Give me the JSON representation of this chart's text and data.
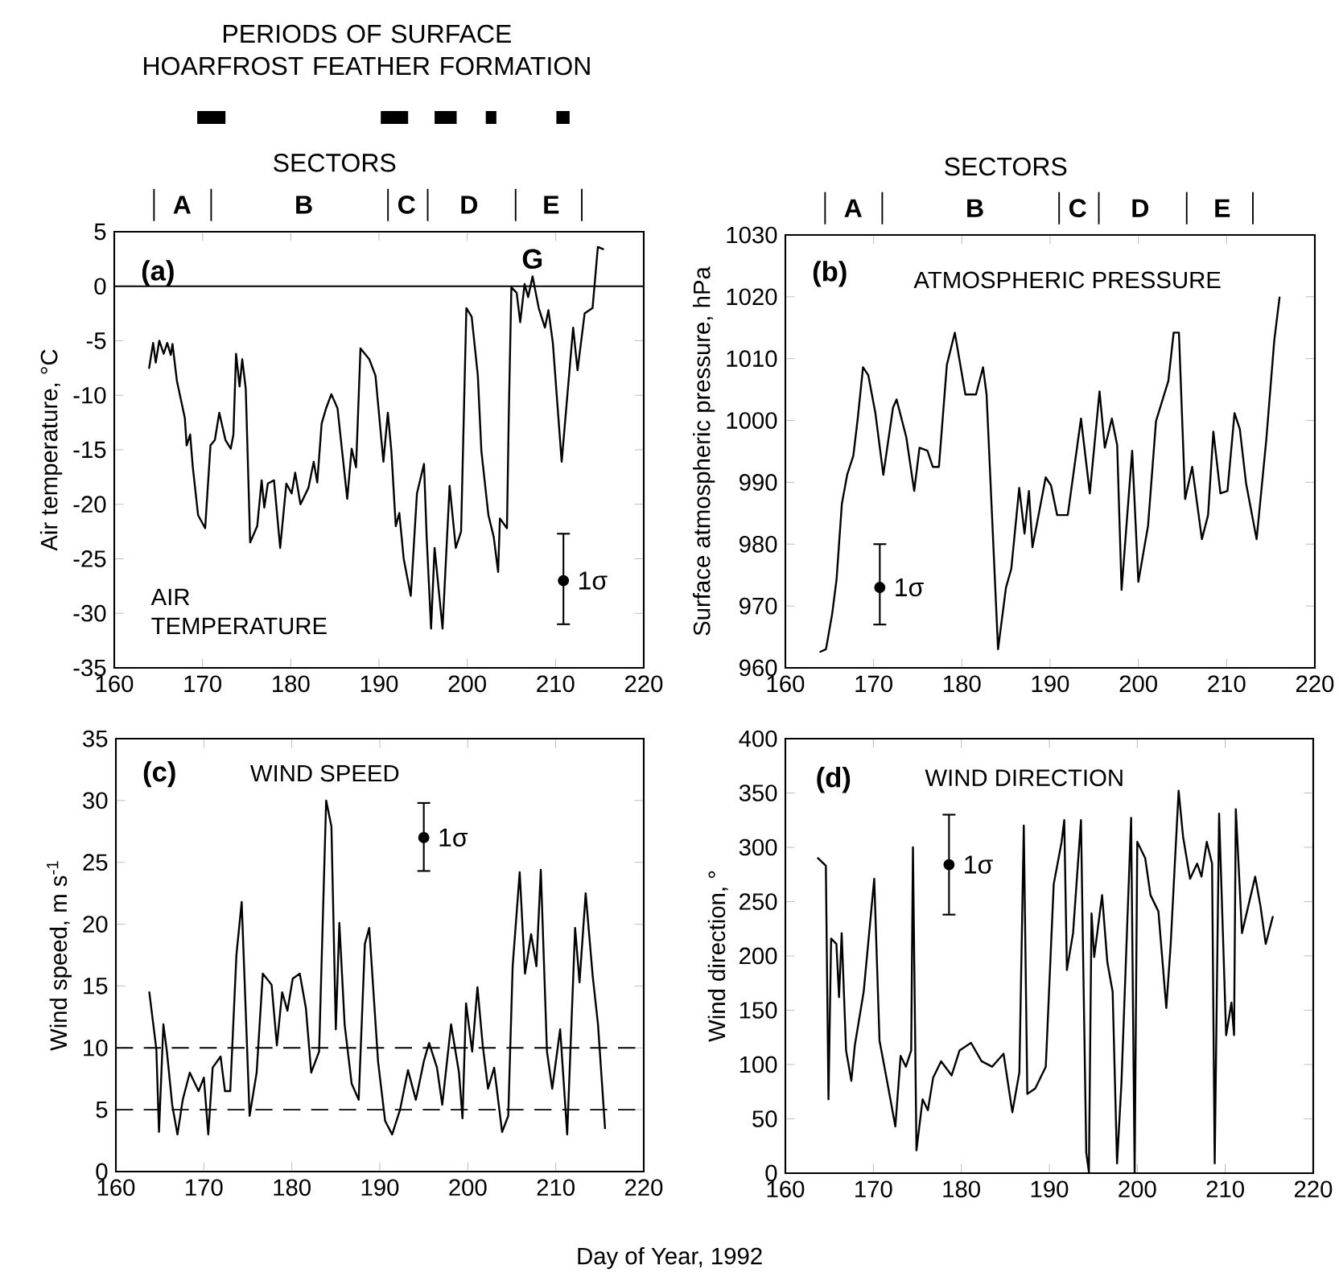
{
  "chart_data": [
    {
      "type": "bar",
      "orientation": "horizontal",
      "title": "PERIODS OF SURFACE HOARFROST FEATHER FORMATION",
      "categories": [
        null
      ],
      "xlim": [
        160,
        220
      ],
      "tick_labels": false,
      "series": [
        {
          "color": "#000000",
          "values": [
            3.2
          ],
          "base": [
            169.4
          ]
        },
        {
          "color": "#000000",
          "values": [
            3.1
          ],
          "base": [
            190.2
          ]
        },
        {
          "color": "#000000",
          "values": [
            2.5
          ],
          "base": [
            196.3
          ]
        },
        {
          "color": "#000000",
          "values": [
            1.2
          ],
          "base": [
            202.1
          ]
        },
        {
          "color": "#000000",
          "values": [
            1.5
          ],
          "base": [
            210.1
          ]
        }
      ]
    },
    {
      "type": "line",
      "ylabel": "Air temperature, °C",
      "xlim": [
        160,
        220
      ],
      "xticks": [
        160,
        170,
        180,
        190,
        200,
        210,
        220
      ],
      "ylim": [
        -35,
        5
      ],
      "yticks": [
        -35,
        -30,
        -25,
        -20,
        -15,
        -10,
        -5,
        0,
        5
      ],
      "annotations": [
        "(a)",
        "AIR TEMPERATURE",
        "SECTORS",
        "A",
        "B",
        "C",
        "D",
        "E",
        {
          "text": "G",
          "x": 207.4,
          "y": 0.9
        }
      ],
      "ref_lines": [
        {
          "axis": "y",
          "value": 0,
          "color": "#000000",
          "line_style": "solid"
        }
      ],
      "series": [
        {
          "type": "line",
          "color": "#000000",
          "x": [
            163.95,
            164.4,
            164.7,
            165.1,
            165.6,
            166.0,
            166.4,
            166.6,
            167.1,
            168.0,
            168.2,
            168.6,
            168.9,
            169.5,
            170.3,
            170.9,
            171.4,
            171.9,
            172.6,
            173.2,
            173.5,
            173.8,
            174.2,
            174.5,
            174.9,
            175.4,
            176.2,
            176.7,
            177.0,
            177.4,
            178.1,
            178.8,
            179.5,
            180.1,
            180.5,
            181.1,
            182.0,
            182.6,
            183.0,
            183.5,
            184.0,
            184.6,
            185.3,
            186.4,
            186.9,
            187.4,
            187.9,
            188.9,
            189.6,
            190.5,
            191.0,
            191.4,
            191.9,
            192.3,
            192.8,
            193.6,
            194.3,
            195.1,
            195.4,
            195.9,
            196.3,
            197.2,
            198.0,
            198.7,
            199.3,
            199.9,
            200.5,
            201.2,
            201.6,
            202.4,
            203.0,
            203.5,
            203.7,
            204.5,
            204.7,
            205.0,
            205.6,
            206.0,
            206.5,
            206.9,
            207.4,
            208.1,
            208.8,
            209.2,
            209.7,
            210.7,
            212.0,
            212.5,
            213.3,
            214.2,
            214.8,
            215.4
          ],
          "values": [
            -7.5,
            -5.2,
            -7,
            -5,
            -6.2,
            -5.2,
            -6.3,
            -5.3,
            -8.7,
            -12.1,
            -14.6,
            -13.6,
            -16.6,
            -21,
            -22.2,
            -14.6,
            -14.1,
            -11.6,
            -14.1,
            -14.9,
            -13.6,
            -6.2,
            -9.2,
            -6.7,
            -9.4,
            -23.5,
            -22,
            -17.8,
            -20.3,
            -18.1,
            -17.8,
            -24,
            -18.1,
            -19,
            -17.1,
            -20,
            -18.5,
            -16.1,
            -18,
            -12.6,
            -11.2,
            -9.9,
            -11.2,
            -19.5,
            -14.9,
            -16.6,
            -5.7,
            -6.7,
            -8.2,
            -16.1,
            -11.6,
            -15.1,
            -22,
            -20.8,
            -25,
            -28.4,
            -19,
            -16.3,
            -23,
            -31.4,
            -24,
            -31.4,
            -18.3,
            -24,
            -22.5,
            -2,
            -2.8,
            -8.2,
            -15.1,
            -21,
            -23,
            -26.2,
            -21.3,
            -22.2,
            -12.1,
            -0.1,
            -0.6,
            -3.3,
            0.2,
            -1,
            0.9,
            -2,
            -3.8,
            -2.2,
            -5.2,
            -16.1,
            -3.8,
            -7.7,
            -2.5,
            -2,
            3.6,
            3.4
          ]
        },
        {
          "type": "scatter",
          "name": "1σ",
          "color": "#000000",
          "x": [
            210.9
          ],
          "values": [
            -27
          ],
          "errors": [
            [
              -31,
              -22.7
            ]
          ]
        }
      ]
    },
    {
      "type": "line",
      "ylabel": "Surface atmospheric pressure, hPa",
      "xlim": [
        160,
        220
      ],
      "xticks": [
        160,
        170,
        180,
        190,
        200,
        210,
        220
      ],
      "ylim": [
        960,
        1030
      ],
      "yticks": [
        960,
        970,
        980,
        990,
        1000,
        1010,
        1020,
        1030
      ],
      "annotations": [
        "(b)",
        "ATMOSPHERIC PRESSURE",
        "SECTORS",
        "A",
        "B",
        "C",
        "D",
        "E"
      ],
      "series": [
        {
          "type": "line",
          "color": "#000000",
          "x": [
            163.96,
            164.6,
            165.3,
            165.8,
            166.4,
            167.0,
            167.7,
            168.2,
            168.8,
            169.4,
            170.2,
            171.1,
            172.2,
            172.6,
            173.7,
            174.6,
            175.2,
            176.1,
            176.7,
            177.4,
            178.3,
            179.2,
            180.4,
            181.6,
            182.4,
            182.8,
            184.1,
            185.0,
            185.6,
            186.5,
            187.1,
            187.6,
            188.0,
            189.5,
            190.1,
            190.8,
            192.0,
            193.5,
            194.5,
            195.6,
            196.2,
            197.0,
            197.6,
            198.1,
            199.3,
            200.0,
            201.1,
            202.0,
            203.4,
            204.0,
            204.6,
            205.3,
            206.1,
            207.2,
            207.9,
            208.5,
            209.3,
            210.1,
            210.9,
            211.5,
            212.2,
            213.4,
            214.5,
            215.4,
            216.0
          ],
          "values": [
            962.6,
            963,
            968.7,
            974.3,
            986.5,
            991.2,
            994.3,
            1000.3,
            1008.6,
            1007.3,
            1001.2,
            991.2,
            1002.1,
            1003.4,
            997.3,
            988.6,
            995.6,
            995.1,
            992.5,
            992.5,
            1009,
            1014.2,
            1004.2,
            1004.2,
            1008.6,
            1004.2,
            963,
            973,
            976,
            989.1,
            981.7,
            988.6,
            979.5,
            990.8,
            989.5,
            984.7,
            984.7,
            1000.3,
            988.2,
            1004.7,
            995.6,
            1000.3,
            996,
            972.6,
            995.1,
            973.9,
            983,
            999.9,
            1006.4,
            1014.2,
            1014.2,
            987.3,
            992.5,
            980.8,
            984.7,
            998.2,
            988.2,
            988.6,
            1001.2,
            998.6,
            989.9,
            980.8,
            996.9,
            1012.9,
            1019.9
          ]
        },
        {
          "type": "scatter",
          "name": "1σ",
          "color": "#000000",
          "x": [
            170.7
          ],
          "values": [
            973
          ],
          "errors": [
            [
              967,
              980
            ]
          ]
        }
      ]
    },
    {
      "type": "line",
      "ylabel": "Wind speed, m s$^{-1}$",
      "xlabel": "Day of Year, 1992",
      "xlim": [
        160,
        220
      ],
      "xticks": [
        160,
        170,
        180,
        190,
        200,
        210,
        220
      ],
      "ylim": [
        0,
        35
      ],
      "yticks": [
        0,
        5,
        10,
        15,
        20,
        25,
        30,
        35
      ],
      "annotations": [
        "(c)",
        "WIND SPEED"
      ],
      "ref_lines": [
        {
          "axis": "y",
          "value": 10,
          "color": "#000000",
          "line_style": "dashed"
        },
        {
          "axis": "y",
          "value": 5,
          "color": "#000000",
          "line_style": "dashed"
        }
      ],
      "series": [
        {
          "type": "line",
          "color": "#000000",
          "x": [
            163.8,
            164.6,
            164.9,
            165.4,
            165.8,
            166.4,
            167.0,
            167.6,
            168.4,
            169.4,
            170.0,
            170.5,
            171.0,
            171.9,
            172.4,
            173.0,
            173.7,
            174.3,
            175.2,
            176.0,
            176.7,
            177.7,
            178.3,
            178.9,
            179.5,
            180.1,
            180.9,
            181.6,
            182.2,
            183.1,
            183.9,
            184.5,
            185.0,
            185.4,
            186.0,
            186.8,
            187.6,
            188.3,
            188.8,
            189.8,
            190.6,
            191.4,
            192.3,
            193.2,
            194.1,
            195.0,
            195.6,
            196.5,
            197.1,
            198.1,
            199.0,
            199.4,
            199.8,
            200.5,
            201.1,
            201.7,
            202.3,
            203.0,
            203.9,
            204.6,
            205.1,
            205.9,
            206.5,
            207.2,
            207.8,
            208.3,
            209.0,
            209.6,
            210.5,
            211.3,
            212.2,
            212.7,
            213.4,
            214.2,
            214.8,
            215.6
          ],
          "values": [
            14.5,
            9.9,
            3.2,
            11.9,
            9.7,
            5.4,
            3.0,
            5.8,
            8.0,
            6.5,
            7.6,
            3.0,
            8.4,
            9.3,
            6.5,
            6.5,
            17.5,
            21.8,
            4.5,
            8.0,
            16.0,
            15.1,
            10.2,
            14.5,
            13.0,
            15.6,
            16.0,
            13.2,
            8.0,
            9.7,
            30.0,
            27.9,
            11.5,
            20.1,
            11.9,
            7.1,
            5.8,
            18.4,
            19.7,
            8.9,
            4.1,
            3.0,
            5.0,
            8.2,
            5.8,
            8.9,
            10.4,
            8.4,
            5.4,
            11.9,
            8.0,
            4.3,
            13.6,
            9.7,
            14.9,
            10.2,
            6.7,
            8.4,
            3.2,
            4.5,
            16.6,
            24.2,
            16.0,
            19.2,
            16.6,
            24.4,
            9.7,
            6.7,
            11.5,
            3.0,
            19.7,
            15.3,
            22.5,
            15.8,
            11.9,
            3.5
          ]
        },
        {
          "type": "scatter",
          "name": "1σ",
          "color": "#000000",
          "x": [
            195.0
          ],
          "values": [
            27
          ],
          "errors": [
            [
              24.3,
              29.8
            ]
          ]
        }
      ]
    },
    {
      "type": "line",
      "ylabel": "Wind direction, °",
      "xlim": [
        160,
        220
      ],
      "xticks": [
        160,
        170,
        180,
        190,
        200,
        210,
        220
      ],
      "ylim": [
        0,
        400
      ],
      "yticks": [
        0,
        50,
        100,
        150,
        200,
        250,
        300,
        350,
        400
      ],
      "annotations": [
        "(d)",
        "WIND DIRECTION"
      ],
      "series": [
        {
          "type": "line",
          "color": "#000000",
          "x": [
            163.7,
            164.6,
            164.9,
            165.2,
            165.8,
            166.1,
            166.4,
            166.9,
            167.5,
            167.9,
            168.9,
            170.1,
            170.7,
            171.6,
            172.5,
            173.1,
            173.7,
            174.3,
            174.5,
            174.9,
            175.6,
            176.2,
            176.8,
            177.7,
            178.9,
            179.8,
            181.1,
            182.3,
            183.5,
            184.8,
            185.8,
            186.6,
            187.1,
            187.5,
            188.4,
            189.6,
            190.5,
            191.4,
            191.7,
            192.0,
            192.7,
            193.6,
            194.2,
            194.5,
            194.8,
            195.1,
            196.0,
            196.6,
            197.2,
            197.7,
            198.2,
            199.3,
            199.7,
            200.0,
            200.9,
            201.5,
            202.4,
            203.3,
            203.8,
            204.3,
            204.7,
            205.2,
            206.0,
            206.8,
            207.3,
            207.9,
            208.5,
            208.8,
            209.3,
            210.1,
            210.7,
            211.0,
            211.2,
            211.9,
            213.4,
            214.0,
            214.6,
            215.4
          ],
          "values": [
            290,
            283,
            68,
            216,
            211,
            162,
            221,
            113,
            85,
            118,
            167,
            271,
            122,
            83,
            43,
            108,
            98,
            113,
            300,
            21,
            68,
            58,
            88,
            103,
            90,
            113,
            120,
            103,
            98,
            110,
            56,
            93,
            320,
            73,
            78,
            98,
            266,
            305,
            325,
            187,
            221,
            325,
            19,
            1,
            239,
            199,
            256,
            194,
            167,
            9,
            83,
            327,
            1,
            305,
            290,
            256,
            241,
            152,
            211,
            290,
            352,
            310,
            271,
            285,
            273,
            305,
            285,
            9,
            331,
            127,
            157,
            127,
            335,
            221,
            273,
            246,
            211,
            236
          ]
        },
        {
          "type": "scatter",
          "name": "1σ",
          "color": "#000000",
          "x": [
            178.6
          ],
          "values": [
            284
          ],
          "errors": [
            [
              238,
              330
            ]
          ]
        }
      ]
    }
  ]
}
